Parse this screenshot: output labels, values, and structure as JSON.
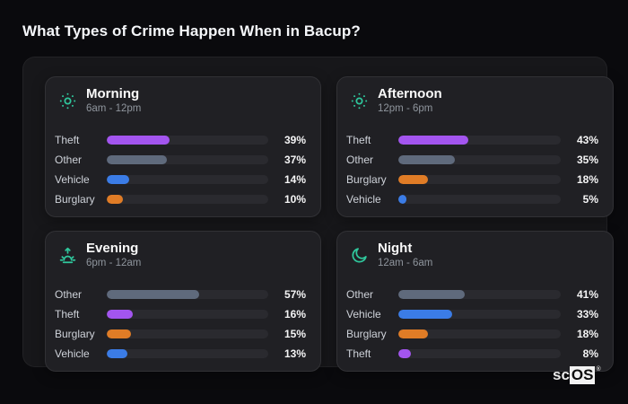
{
  "page": {
    "title": "What Types of Crime Happen When in Bacup?"
  },
  "palette": {
    "accent_teal": "#2fc79c",
    "theft": "#a355ef",
    "other": "#5f6a7c",
    "vehicle": "#3b7ce6",
    "burglary": "#e07c26",
    "bar_track": "#2a2a2f",
    "card_bg": "#202024",
    "panel_bg": "#17171a",
    "page_bg": "#0a0a0d"
  },
  "cards": [
    {
      "id": "morning",
      "icon": "sun-icon",
      "title": "Morning",
      "subtitle": "6am - 12pm",
      "rows": [
        {
          "label": "Theft",
          "value": 39,
          "pct": "39%",
          "color": "#a355ef"
        },
        {
          "label": "Other",
          "value": 37,
          "pct": "37%",
          "color": "#5f6a7c"
        },
        {
          "label": "Vehicle",
          "value": 14,
          "pct": "14%",
          "color": "#3b7ce6"
        },
        {
          "label": "Burglary",
          "value": 10,
          "pct": "10%",
          "color": "#e07c26"
        }
      ]
    },
    {
      "id": "afternoon",
      "icon": "sun-icon",
      "title": "Afternoon",
      "subtitle": "12pm - 6pm",
      "rows": [
        {
          "label": "Theft",
          "value": 43,
          "pct": "43%",
          "color": "#a355ef"
        },
        {
          "label": "Other",
          "value": 35,
          "pct": "35%",
          "color": "#5f6a7c"
        },
        {
          "label": "Burglary",
          "value": 18,
          "pct": "18%",
          "color": "#e07c26"
        },
        {
          "label": "Vehicle",
          "value": 5,
          "pct": "5%",
          "color": "#3b7ce6"
        }
      ]
    },
    {
      "id": "evening",
      "icon": "sunset-arrow-icon",
      "title": "Evening",
      "subtitle": "6pm - 12am",
      "rows": [
        {
          "label": "Other",
          "value": 57,
          "pct": "57%",
          "color": "#5f6a7c"
        },
        {
          "label": "Theft",
          "value": 16,
          "pct": "16%",
          "color": "#a355ef"
        },
        {
          "label": "Burglary",
          "value": 15,
          "pct": "15%",
          "color": "#e07c26"
        },
        {
          "label": "Vehicle",
          "value": 13,
          "pct": "13%",
          "color": "#3b7ce6"
        }
      ]
    },
    {
      "id": "night",
      "icon": "moon-icon",
      "title": "Night",
      "subtitle": "12am - 6am",
      "rows": [
        {
          "label": "Other",
          "value": 41,
          "pct": "41%",
          "color": "#5f6a7c"
        },
        {
          "label": "Vehicle",
          "value": 33,
          "pct": "33%",
          "color": "#3b7ce6"
        },
        {
          "label": "Burglary",
          "value": 18,
          "pct": "18%",
          "color": "#e07c26"
        },
        {
          "label": "Theft",
          "value": 8,
          "pct": "8%",
          "color": "#a355ef"
        }
      ]
    }
  ],
  "chart_data": [
    {
      "type": "bar",
      "orientation": "horizontal",
      "title": "Morning",
      "subtitle": "6am - 12pm",
      "categories": [
        "Theft",
        "Other",
        "Vehicle",
        "Burglary"
      ],
      "values": [
        39,
        37,
        14,
        10
      ],
      "unit": "%",
      "xlim": [
        0,
        100
      ],
      "grid": false,
      "legend": false
    },
    {
      "type": "bar",
      "orientation": "horizontal",
      "title": "Afternoon",
      "subtitle": "12pm - 6pm",
      "categories": [
        "Theft",
        "Other",
        "Burglary",
        "Vehicle"
      ],
      "values": [
        43,
        35,
        18,
        5
      ],
      "unit": "%",
      "xlim": [
        0,
        100
      ],
      "grid": false,
      "legend": false
    },
    {
      "type": "bar",
      "orientation": "horizontal",
      "title": "Evening",
      "subtitle": "6pm - 12am",
      "categories": [
        "Other",
        "Theft",
        "Burglary",
        "Vehicle"
      ],
      "values": [
        57,
        16,
        15,
        13
      ],
      "unit": "%",
      "xlim": [
        0,
        100
      ],
      "grid": false,
      "legend": false
    },
    {
      "type": "bar",
      "orientation": "horizontal",
      "title": "Night",
      "subtitle": "12am - 6am",
      "categories": [
        "Other",
        "Vehicle",
        "Burglary",
        "Theft"
      ],
      "values": [
        41,
        33,
        18,
        8
      ],
      "unit": "%",
      "xlim": [
        0,
        100
      ],
      "grid": false,
      "legend": false
    }
  ],
  "watermark": {
    "prefix": "sc",
    "brand": "OS",
    "registered": "®"
  }
}
